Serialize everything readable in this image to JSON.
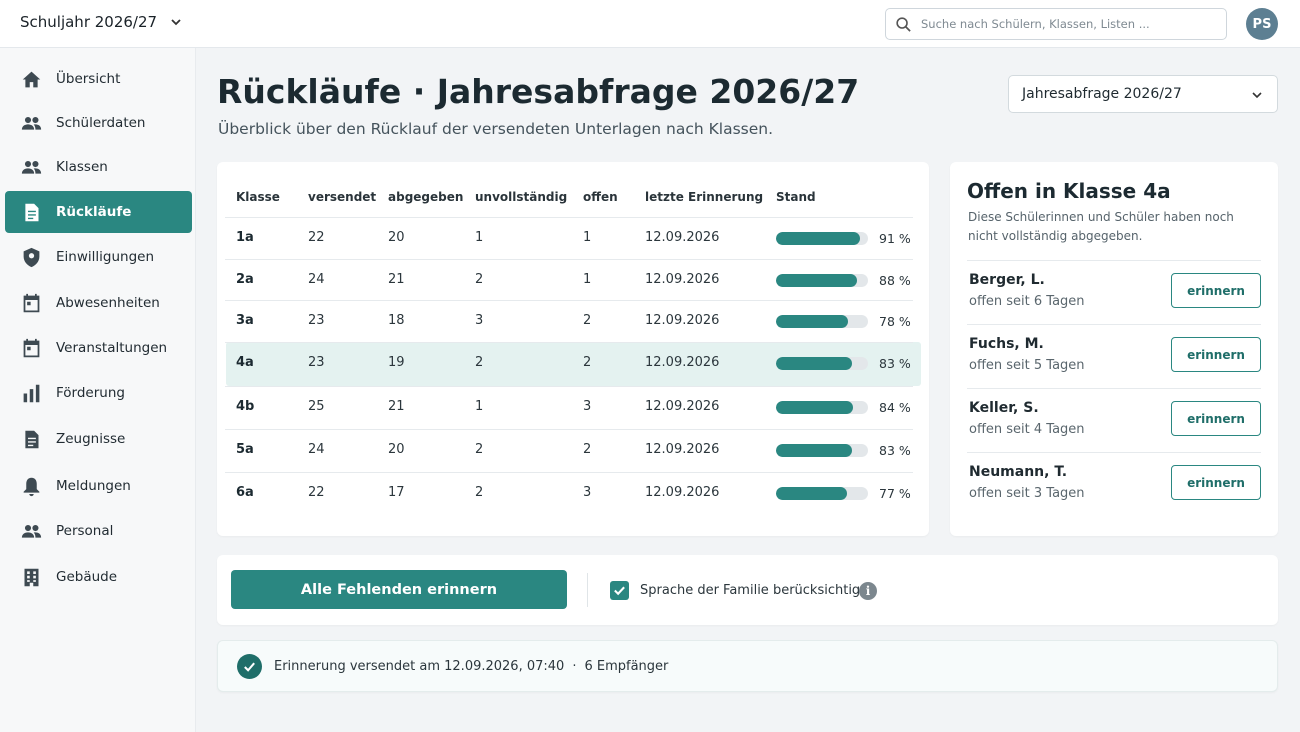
{
  "topbar": {
    "year_label": "Schuljahr 2026/27",
    "search_placeholder": "Suche nach Schülern, Klassen, Listen ...",
    "avatar_initials": "PS"
  },
  "sidebar": {
    "items": [
      {
        "label": "Übersicht",
        "icon": "home-icon"
      },
      {
        "label": "Schülerdaten",
        "icon": "people-icon"
      },
      {
        "label": "Klassen",
        "icon": "people-icon"
      },
      {
        "label": "Rückläufe",
        "icon": "document-icon",
        "active": true
      },
      {
        "label": "Einwilligungen",
        "icon": "shield-icon"
      },
      {
        "label": "Abwesenheiten",
        "icon": "calendar-icon"
      },
      {
        "label": "Veranstaltungen",
        "icon": "calendar-icon"
      },
      {
        "label": "Förderung",
        "icon": "bar-chart-icon"
      },
      {
        "label": "Zeugnisse",
        "icon": "report-icon"
      },
      {
        "label": "Meldungen",
        "icon": "bell-icon"
      },
      {
        "label": "Personal",
        "icon": "people-icon"
      },
      {
        "label": "Gebäude",
        "icon": "building-icon"
      }
    ]
  },
  "header": {
    "title": "Rückläufe · Jahresabfrage 2026/27",
    "subtitle": "Überblick über den Rücklauf der versendeten Unterlagen nach Klassen.",
    "survey_select": "Jahresabfrage 2026/27"
  },
  "table": {
    "columns": [
      "Klasse",
      "versendet",
      "abgegeben",
      "unvollständig",
      "offen",
      "letzte Erinnerung",
      "Stand"
    ],
    "rows": [
      {
        "klasse": "1a",
        "versendet": "22",
        "abgegeben": "20",
        "unvollstaendig": "1",
        "offen": "1",
        "erinnerung": "12.09.2026",
        "stand": 91,
        "stand_label": "91 %"
      },
      {
        "klasse": "2a",
        "versendet": "24",
        "abgegeben": "21",
        "unvollstaendig": "2",
        "offen": "1",
        "erinnerung": "12.09.2026",
        "stand": 88,
        "stand_label": "88 %"
      },
      {
        "klasse": "3a",
        "versendet": "23",
        "abgegeben": "18",
        "unvollstaendig": "3",
        "offen": "2",
        "erinnerung": "12.09.2026",
        "stand": 78,
        "stand_label": "78 %"
      },
      {
        "klasse": "4a",
        "versendet": "23",
        "abgegeben": "19",
        "unvollstaendig": "2",
        "offen": "2",
        "erinnerung": "12.09.2026",
        "stand": 83,
        "stand_label": "83 %",
        "selected": true
      },
      {
        "klasse": "4b",
        "versendet": "25",
        "abgegeben": "21",
        "unvollstaendig": "1",
        "offen": "3",
        "erinnerung": "12.09.2026",
        "stand": 84,
        "stand_label": "84 %"
      },
      {
        "klasse": "5a",
        "versendet": "24",
        "abgegeben": "20",
        "unvollstaendig": "2",
        "offen": "2",
        "erinnerung": "12.09.2026",
        "stand": 83,
        "stand_label": "83 %"
      },
      {
        "klasse": "6a",
        "versendet": "22",
        "abgegeben": "17",
        "unvollstaendig": "2",
        "offen": "3",
        "erinnerung": "12.09.2026",
        "stand": 77,
        "stand_label": "77 %"
      }
    ]
  },
  "open_panel": {
    "title": "Offen in Klasse 4a",
    "description": "Diese Schülerinnen und Schüler haben noch nicht vollständig abgegeben.",
    "students": [
      {
        "name": "Berger, L.",
        "since": "offen seit 6 Tagen",
        "button": "erinnern"
      },
      {
        "name": "Fuchs, M.",
        "since": "offen seit 5 Tagen",
        "button": "erinnern"
      },
      {
        "name": "Keller, S.",
        "since": "offen seit 4 Tagen",
        "button": "erinnern"
      },
      {
        "name": "Neumann, T.",
        "since": "offen seit 3 Tagen",
        "button": "erinnern"
      }
    ]
  },
  "actions": {
    "remind_all": "Alle Fehlenden erinnern",
    "language_checkbox_label": "Sprache der Familie berücksichtigen",
    "language_checked": true
  },
  "notice": {
    "text": "Erinnerung versendet am 12.09.2026, 07:40",
    "separator": "·",
    "recipients": "6 Empfänger"
  },
  "colors": {
    "accent": "#2a8781",
    "selected_row": "#e4f2f0"
  }
}
